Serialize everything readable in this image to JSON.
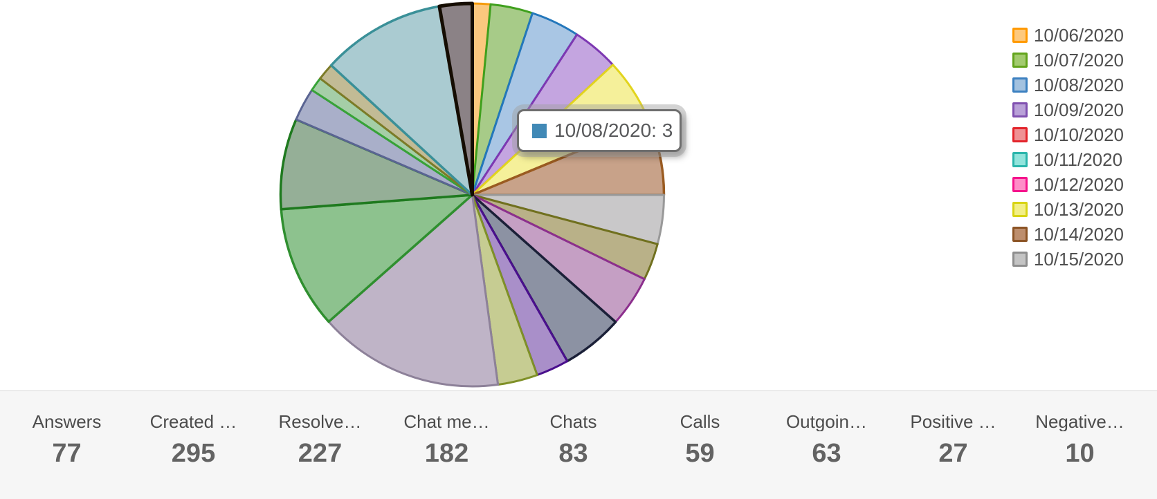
{
  "chart_data": {
    "type": "pie",
    "title": "",
    "legend": {
      "position": "right",
      "entries": [
        {
          "label": "10/06/2020",
          "fill": "#FDC97E",
          "border": "#FF9900"
        },
        {
          "label": "10/07/2020",
          "fill": "#A3CB6F",
          "border": "#63A41C"
        },
        {
          "label": "10/08/2020",
          "fill": "#A3C2E0",
          "border": "#3C80C0"
        },
        {
          "label": "10/09/2020",
          "fill": "#B9A1D8",
          "border": "#8050B0"
        },
        {
          "label": "10/10/2020",
          "fill": "#EF9194",
          "border": "#E3242B"
        },
        {
          "label": "10/11/2020",
          "fill": "#92E4DC",
          "border": "#2AB5AB"
        },
        {
          "label": "10/12/2020",
          "fill": "#FE8DC8",
          "border": "#F5148C"
        },
        {
          "label": "10/13/2020",
          "fill": "#F2EF87",
          "border": "#D8D414"
        },
        {
          "label": "10/14/2020",
          "fill": "#BD8E6D",
          "border": "#8C5425"
        },
        {
          "label": "10/15/2020",
          "fill": "#C4C4C4",
          "border": "#8E8E8E"
        }
      ]
    },
    "tooltip": {
      "swatch_color": "#4189B6",
      "label": "10/08/2020",
      "value": 3,
      "text": "10/08/2020: 3"
    },
    "segments_note": "slices listed clockwise starting at 12 o'clock; angles in degrees",
    "segments": [
      {
        "color_name": "orange",
        "label": "10/06/2020",
        "start_deg": 0,
        "end_deg": 5.5,
        "fill": "#FBC87E",
        "stroke": "#F59B0B",
        "stroke_width": 3
      },
      {
        "color_name": "green",
        "label": "10/07/2020",
        "start_deg": 5.5,
        "end_deg": 18.3,
        "fill": "#A7CB88",
        "stroke": "#3FA01D",
        "stroke_width": 3
      },
      {
        "color_name": "blue",
        "label": "10/08/2020",
        "start_deg": 18.3,
        "end_deg": 33.1,
        "fill": "#A9C6E4",
        "stroke": "#2377BB",
        "stroke_width": 3
      },
      {
        "color_name": "purple",
        "label": "10/09/2020",
        "start_deg": 33.1,
        "end_deg": 47.2,
        "fill": "#C4A5E0",
        "stroke": "#7D38B2",
        "stroke_width": 3
      },
      {
        "color_name": "yellow",
        "label": "10/13/2020",
        "start_deg": 47.2,
        "end_deg": 67.5,
        "fill": "#F5F09A",
        "stroke": "#E2D41E",
        "stroke_width": 3
      },
      {
        "color_name": "brown",
        "label": "10/14/2020",
        "start_deg": 67.5,
        "end_deg": 90,
        "fill": "#C8A289",
        "stroke": "#9A5B21",
        "stroke_width": 3.5
      },
      {
        "color_name": "silver",
        "label": "10/15/2020",
        "start_deg": 90,
        "end_deg": 104.9,
        "fill": "#C9C8C9",
        "stroke": "#999999",
        "stroke_width": 3
      },
      {
        "color_name": "khaki",
        "label": "",
        "start_deg": 104.9,
        "end_deg": 116.1,
        "fill": "#B9B188",
        "stroke": "#70701E",
        "stroke_width": 3
      },
      {
        "color_name": "plum",
        "label": "",
        "start_deg": 116.1,
        "end_deg": 131.6,
        "fill": "#C59FC4",
        "stroke": "#8C2F8D",
        "stroke_width": 3
      },
      {
        "color_name": "slate",
        "label": "",
        "start_deg": 131.6,
        "end_deg": 150.3,
        "fill": "#8C92A3",
        "stroke": "#1B2038",
        "stroke_width": 3.5
      },
      {
        "color_name": "violet",
        "label": "",
        "start_deg": 150.3,
        "end_deg": 160.2,
        "fill": "#A98FC9",
        "stroke": "#4A0F8D",
        "stroke_width": 3
      },
      {
        "color_name": "olive-green",
        "label": "",
        "start_deg": 160.2,
        "end_deg": 172.3,
        "fill": "#C6CC92",
        "stroke": "#7F9027",
        "stroke_width": 3
      },
      {
        "color_name": "lavender",
        "label": "",
        "start_deg": 172.3,
        "end_deg": 228.5,
        "fill": "#BFB4C7",
        "stroke": "#8D8199",
        "stroke_width": 3
      },
      {
        "color_name": "green-2",
        "label": "",
        "start_deg": 228.5,
        "end_deg": 265.7,
        "fill": "#8DC28E",
        "stroke": "#2F8F2F",
        "stroke_width": 3.5
      },
      {
        "color_name": "sage-green",
        "label": "",
        "start_deg": 265.7,
        "end_deg": 293.2,
        "fill": "#95AF97",
        "stroke": "#1F7A1F",
        "stroke_width": 3.5
      },
      {
        "color_name": "blue-gray",
        "label": "",
        "start_deg": 293.2,
        "end_deg": 303.2,
        "fill": "#A9AFC9",
        "stroke": "#5A6492",
        "stroke_width": 3
      },
      {
        "color_name": "light-green",
        "label": "",
        "start_deg": 303.2,
        "end_deg": 307.5,
        "fill": "#A5CEA7",
        "stroke": "#37A337",
        "stroke_width": 3
      },
      {
        "color_name": "khaki-2",
        "label": "",
        "start_deg": 307.5,
        "end_deg": 312.6,
        "fill": "#C2BB95",
        "stroke": "#7C7B27",
        "stroke_width": 3
      },
      {
        "color_name": "teal",
        "label": "",
        "start_deg": 312.6,
        "end_deg": 350.1,
        "fill": "#AACBD1",
        "stroke": "#3A9098",
        "stroke_width": 3.5
      },
      {
        "color_name": "black-gray",
        "label": "",
        "start_deg": 350.1,
        "end_deg": 360,
        "fill": "#8B8286",
        "stroke": "#150D02",
        "stroke_width": 5
      }
    ]
  },
  "summary_bar": {
    "items": [
      {
        "label": "Answers",
        "value": "77"
      },
      {
        "label": "Created …",
        "value": "295"
      },
      {
        "label": "Resolve…",
        "value": "227"
      },
      {
        "label": "Chat me…",
        "value": "182"
      },
      {
        "label": "Chats",
        "value": "83"
      },
      {
        "label": "Calls",
        "value": "59"
      },
      {
        "label": "Outgoin…",
        "value": "63"
      },
      {
        "label": "Positive …",
        "value": "27"
      },
      {
        "label": "Negative…",
        "value": "10"
      }
    ]
  }
}
